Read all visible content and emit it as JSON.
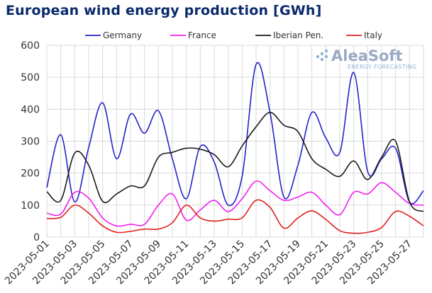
{
  "chart_data": {
    "type": "line",
    "title": "European wind energy production [GWh]",
    "xlabel": "",
    "ylabel": "",
    "ylim": [
      0,
      600
    ],
    "yticks": [
      0,
      100,
      200,
      300,
      400,
      500,
      600
    ],
    "grid": true,
    "legend_position": "top",
    "watermark": {
      "name": "AleaSoft",
      "tagline": "ENERGY FORECASTING"
    },
    "x": [
      "2023-05-01",
      "2023-05-02",
      "2023-05-03",
      "2023-05-04",
      "2023-05-05",
      "2023-05-06",
      "2023-05-07",
      "2023-05-08",
      "2023-05-09",
      "2023-05-10",
      "2023-05-11",
      "2023-05-12",
      "2023-05-13",
      "2023-05-14",
      "2023-05-15",
      "2023-05-16",
      "2023-05-17",
      "2023-05-18",
      "2023-05-19",
      "2023-05-20",
      "2023-05-21",
      "2023-05-22",
      "2023-05-23",
      "2023-05-24",
      "2023-05-25",
      "2023-05-26",
      "2023-05-27",
      "2023-05-28"
    ],
    "xtick_labels": [
      "2023-05-01",
      "2023-05-03",
      "2023-05-05",
      "2023-05-07",
      "2023-05-09",
      "2023-05-11",
      "2023-05-13",
      "2023-05-15",
      "2023-05-17",
      "2023-05-19",
      "2023-05-21",
      "2023-05-23",
      "2023-05-25",
      "2023-05-27"
    ],
    "series": [
      {
        "name": "Germany",
        "color": "#2323c8",
        "values": [
          155,
          320,
          110,
          280,
          420,
          245,
          385,
          325,
          395,
          245,
          120,
          283,
          235,
          100,
          190,
          540,
          390,
          125,
          225,
          390,
          310,
          265,
          515,
          205,
          245,
          278,
          110,
          145
        ]
      },
      {
        "name": "France",
        "color": "#f020f0",
        "values": [
          75,
          72,
          140,
          122,
          60,
          35,
          40,
          40,
          100,
          135,
          53,
          85,
          115,
          80,
          120,
          175,
          145,
          115,
          125,
          140,
          100,
          70,
          140,
          135,
          170,
          140,
          105,
          100
        ]
      },
      {
        "name": "Iberian Pen.",
        "color": "#1a1a1a",
        "values": [
          142,
          115,
          263,
          225,
          112,
          135,
          160,
          160,
          250,
          265,
          278,
          275,
          258,
          220,
          285,
          345,
          390,
          350,
          330,
          245,
          212,
          190,
          238,
          180,
          250,
          300,
          110,
          80
        ]
      },
      {
        "name": "Italy",
        "color": "#e02020",
        "values": [
          58,
          62,
          100,
          75,
          35,
          15,
          18,
          25,
          25,
          45,
          100,
          60,
          50,
          56,
          60,
          115,
          93,
          28,
          60,
          82,
          55,
          20,
          12,
          15,
          30,
          80,
          65,
          35
        ]
      }
    ]
  }
}
